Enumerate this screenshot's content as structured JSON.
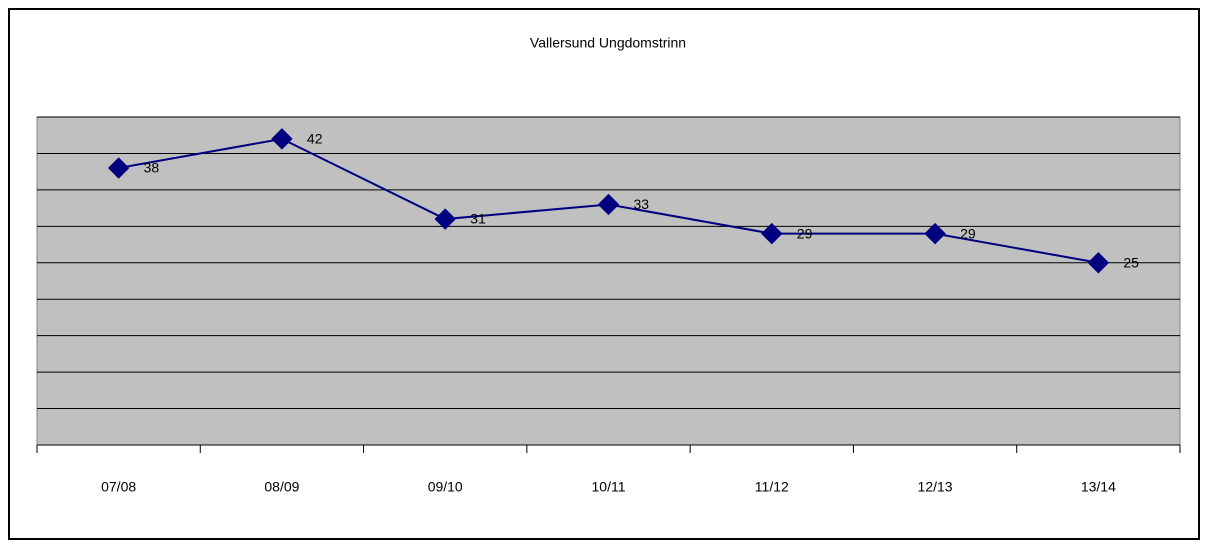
{
  "chart_data": {
    "type": "line",
    "title": "Vallersund Ungdomstrinn",
    "categories": [
      "07/08",
      "08/09",
      "09/10",
      "10/11",
      "11/12",
      "12/13",
      "13/14"
    ],
    "series": [
      {
        "name": "Vallersund Ungdomstrinn",
        "color": "#000080",
        "values": [
          38,
          42,
          31,
          33,
          29,
          29,
          25
        ]
      }
    ],
    "ylim": [
      0,
      45
    ],
    "yticks": [
      0,
      5,
      10,
      15,
      20,
      25,
      30,
      35,
      40,
      45
    ],
    "grid": true
  }
}
